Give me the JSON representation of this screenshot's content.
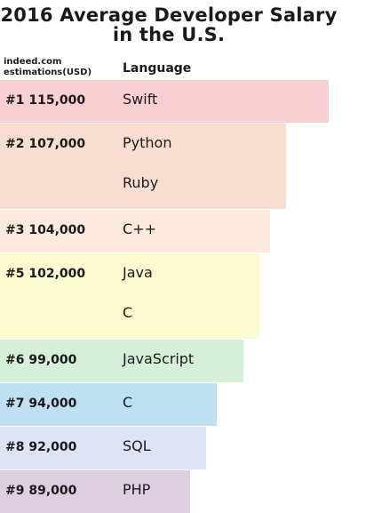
{
  "chart_data": {
    "type": "bar",
    "title": [
      "2016 Average Developer Salary",
      "in the U.S."
    ],
    "column_headers": {
      "source": [
        "indeed.com",
        "estimations(USD)"
      ],
      "language": "Language"
    },
    "groups": [
      {
        "rank": "#1",
        "value_label": "115,000",
        "value": 115000,
        "color": "#f9cfd3",
        "languages": [
          "Swift"
        ]
      },
      {
        "rank": "#2",
        "value_label": "107,000",
        "value": 107000,
        "color": "#f9ddd0",
        "languages": [
          "Python",
          "Ruby"
        ]
      },
      {
        "rank": "#3",
        "value_label": "104,000",
        "value": 104000,
        "color": "#fdeadc",
        "languages": [
          "C++"
        ]
      },
      {
        "rank": "#5",
        "value_label": "102,000",
        "value": 102000,
        "color": "#fdfbd0",
        "languages": [
          "Java",
          "C"
        ]
      },
      {
        "rank": "#6",
        "value_label": "99,000",
        "value": 99000,
        "color": "#d6efd9",
        "languages": [
          "JavaScript"
        ]
      },
      {
        "rank": "#7",
        "value_label": "94,000",
        "value": 94000,
        "color": "#bfe0f3",
        "languages": [
          "C"
        ]
      },
      {
        "rank": "#8",
        "value_label": "92,000",
        "value": 92000,
        "color": "#dde3f4",
        "languages": [
          "SQL"
        ]
      },
      {
        "rank": "#9",
        "value_label": "89,000",
        "value": 89000,
        "color": "#dccfe0",
        "languages": [
          "PHP"
        ]
      }
    ]
  }
}
